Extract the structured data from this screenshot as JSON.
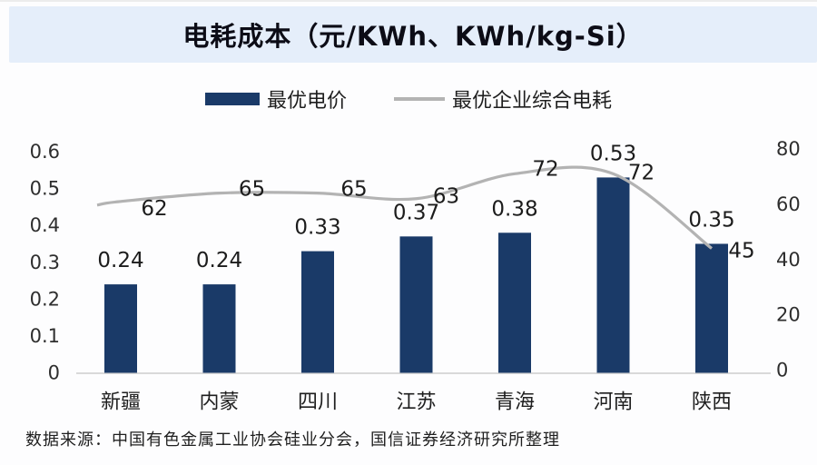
{
  "title": {
    "text": "电耗成本（元/KWh、KWh/kg-Si）",
    "band_color": "#e5eefa"
  },
  "legend": [
    {
      "label": "最优电价",
      "marker": "bar-swatch",
      "color": "#1a3a68"
    },
    {
      "label": "最优企业综合电耗",
      "marker": "line-swatch",
      "color": "#b3b3b3"
    }
  ],
  "footer": {
    "text": "数据来源：中国有色金属工业协会硅业分会，国信证券经济研究所整理"
  },
  "colors": {
    "bar": "#1a3a68",
    "line": "#b3b3b3",
    "axis_line": "#d9d9d9",
    "label_text": "#1c1c1c",
    "tick_text": "#2e2e2e"
  },
  "chart_data": {
    "type": "bar",
    "subtype": "combo-bar-line-dual-axis",
    "title": "电耗成本（元/KWh、KWh/kg-Si）",
    "categories": [
      "新疆",
      "内蒙",
      "四川",
      "江苏",
      "青海",
      "河南",
      "陕西"
    ],
    "series": [
      {
        "name": "最优电价",
        "type": "bar",
        "axis": "left",
        "values": [
          0.24,
          0.24,
          0.33,
          0.37,
          0.38,
          0.53,
          0.35
        ]
      },
      {
        "name": "最优企业综合电耗",
        "type": "line",
        "axis": "right",
        "values": [
          62,
          65,
          65,
          63,
          72,
          72,
          45
        ]
      }
    ],
    "left_axis": {
      "ticks": [
        0.6,
        0.5,
        0.4,
        0.3,
        0.2,
        0.1,
        0
      ],
      "range": [
        0,
        0.6
      ]
    },
    "right_axis": {
      "ticks": [
        80,
        60,
        40,
        20,
        0
      ],
      "range": [
        0,
        80
      ]
    },
    "grid": false,
    "legend_position": "top",
    "data_labels": true
  }
}
